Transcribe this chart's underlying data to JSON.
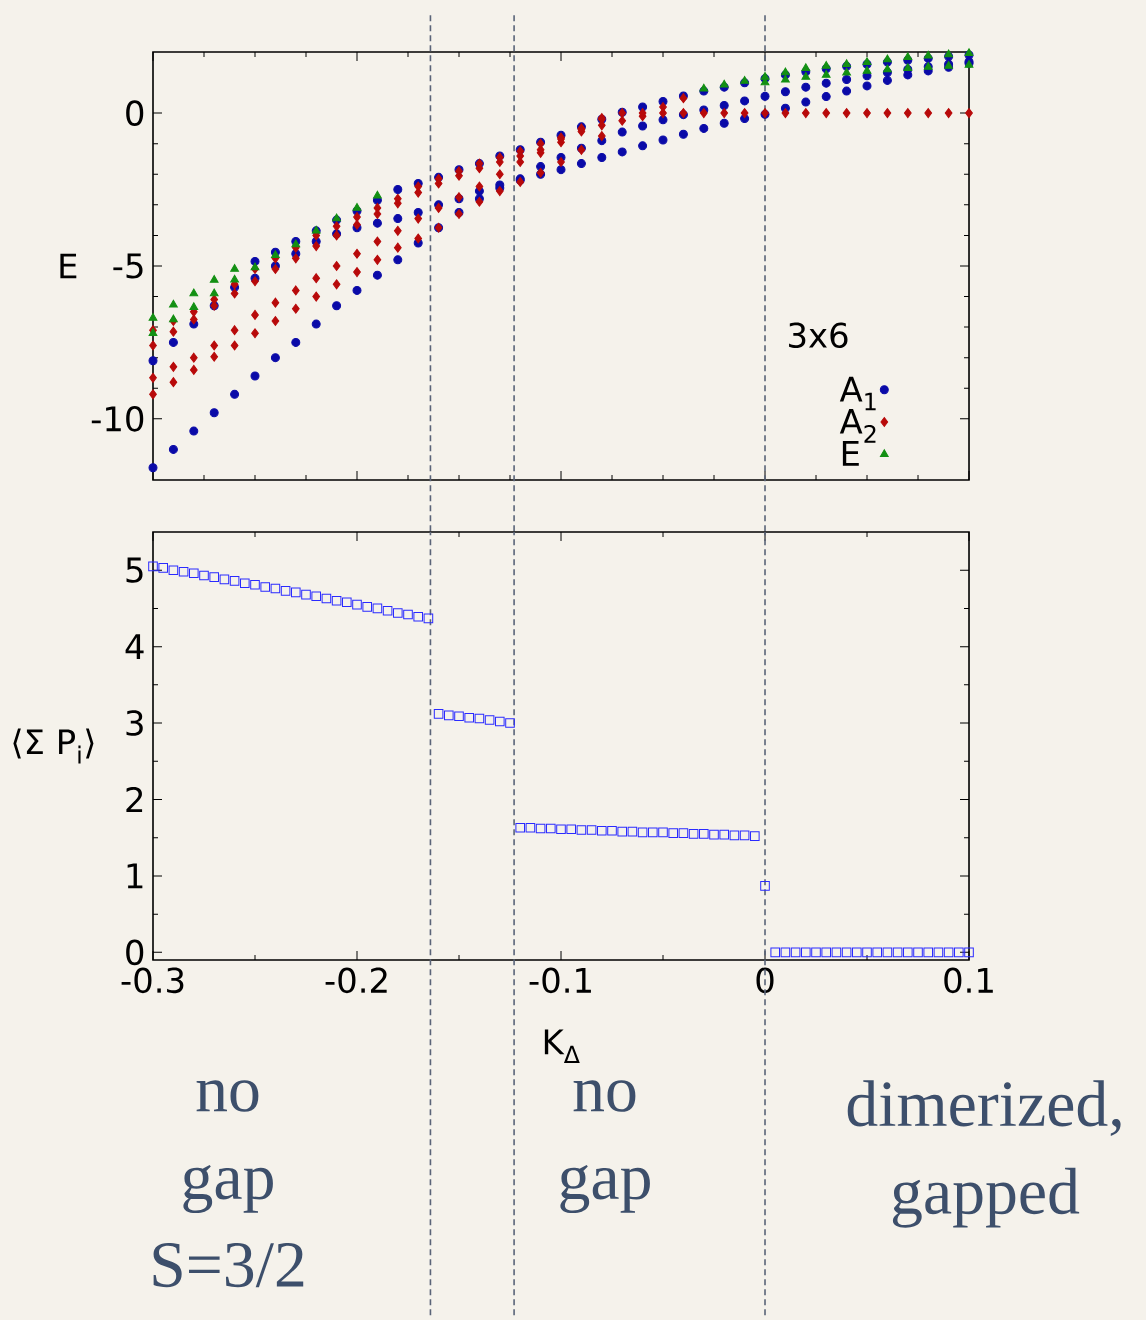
{
  "chart_data": [
    {
      "type": "scatter",
      "ylabel": "E",
      "xlim": [
        -0.3,
        0.1
      ],
      "ylim": [
        -12,
        2
      ],
      "xticks": [
        -0.3,
        -0.2,
        -0.1,
        0,
        0.1
      ],
      "yticks": [
        -10,
        -5,
        0
      ],
      "tick_labels": "y",
      "legend": "bottom right",
      "legend_title": "3x6",
      "series": [
        {
          "name": "A$_{1}$",
          "color": "#0a0aa8",
          "marker": "circle",
          "x": [
            -0.3,
            -0.29,
            -0.28,
            -0.27,
            -0.26,
            -0.25,
            -0.24,
            -0.23,
            -0.22,
            -0.21,
            -0.2,
            -0.19,
            -0.18,
            -0.17,
            -0.16,
            -0.15,
            -0.14,
            -0.13,
            -0.12,
            -0.11,
            -0.1,
            -0.09,
            -0.08,
            -0.07,
            -0.06,
            -0.05,
            -0.04,
            -0.03,
            -0.02,
            -0.01,
            0,
            0.01,
            0.02,
            0.03,
            0.04,
            0.05,
            0.06,
            0.07,
            0.08,
            0.09,
            0.1,
            -0.3,
            -0.29,
            -0.28,
            -0.27,
            -0.26,
            -0.25,
            -0.24,
            -0.23,
            -0.22,
            -0.21,
            -0.2,
            -0.19,
            -0.18,
            -0.17,
            -0.16,
            -0.15,
            -0.14,
            -0.13,
            -0.12,
            -0.11,
            -0.1,
            -0.09,
            -0.08,
            -0.07,
            -0.06,
            -0.05,
            -0.04,
            -0.03,
            -0.02,
            -0.01,
            0,
            0.01,
            0.02,
            0.03,
            0.04,
            0.05,
            0.06,
            0.07,
            0.08,
            0.09,
            0.1,
            -0.25,
            -0.24,
            -0.23,
            -0.22,
            -0.21,
            -0.2,
            -0.19,
            -0.18,
            -0.17,
            -0.16,
            -0.15,
            -0.14,
            -0.13,
            -0.12,
            -0.11,
            -0.1,
            -0.09,
            -0.08,
            -0.07,
            -0.06,
            -0.05,
            -0.04,
            -0.03,
            -0.02,
            -0.01,
            0,
            0.01,
            0.02,
            0.03,
            0.04,
            0.05,
            0.06,
            0.07,
            0.08,
            0.09,
            0.1
          ],
          "values": [
            -11.6,
            -11.0,
            -10.4,
            -9.8,
            -9.2,
            -8.6,
            -8.0,
            -7.5,
            -6.9,
            -6.3,
            -5.8,
            -5.3,
            -4.8,
            -4.25,
            -3.75,
            -3.25,
            -2.8,
            -2.45,
            -2.2,
            -2.0,
            -1.85,
            -1.65,
            -1.45,
            -1.27,
            -1.07,
            -0.88,
            -0.69,
            -0.5,
            -0.33,
            -0.18,
            -0.04,
            0.16,
            0.36,
            0.54,
            0.72,
            0.89,
            1.07,
            1.25,
            1.38,
            1.5,
            1.63,
            -8.1,
            -7.5,
            -6.9,
            -6.3,
            -5.7,
            -4.85,
            -4.55,
            -4.2,
            -3.85,
            -3.5,
            -3.2,
            -2.85,
            -2.5,
            -2.3,
            -2.1,
            -1.85,
            -1.65,
            -1.4,
            -1.2,
            -0.95,
            -0.72,
            -0.45,
            -0.2,
            0.03,
            0.2,
            0.38,
            0.56,
            0.72,
            0.85,
            0.99,
            1.13,
            1.25,
            1.35,
            1.45,
            1.53,
            1.6,
            1.67,
            1.73,
            1.79,
            1.85,
            1.9,
            -5.4,
            -5.0,
            -4.6,
            -4.2,
            -3.95,
            -3.75,
            -3.6,
            -3.45,
            -3.25,
            -3.0,
            -2.8,
            -2.55,
            -2.35,
            -2.15,
            -1.75,
            -1.45,
            -1.15,
            -0.9,
            -0.62,
            -0.42,
            -0.22,
            -0.05,
            0.1,
            0.25,
            0.4,
            0.55,
            0.7,
            0.85,
            0.98,
            1.1,
            1.22,
            1.33,
            1.43,
            1.52,
            1.6,
            1.68
          ]
        },
        {
          "name": "A$_{2}$",
          "color": "#b80a0a",
          "marker": "diamond",
          "x": [
            -0.3,
            -0.29,
            -0.28,
            -0.27,
            -0.26,
            -0.25,
            -0.24,
            -0.23,
            -0.22,
            -0.21,
            -0.2,
            -0.19,
            -0.18,
            -0.17,
            -0.16,
            -0.15,
            -0.14,
            -0.13,
            -0.12,
            -0.11,
            -0.1,
            -0.09,
            -0.08,
            -0.3,
            -0.29,
            -0.28,
            -0.27,
            -0.26,
            -0.25,
            -0.24,
            -0.23,
            -0.22,
            -0.21,
            -0.2,
            -0.19,
            -0.18,
            -0.17,
            -0.16,
            -0.15,
            -0.14,
            -0.13,
            -0.12,
            -0.11,
            -0.1,
            -0.09,
            -0.08,
            -0.3,
            -0.29,
            -0.28,
            -0.27,
            -0.26,
            -0.25,
            -0.24,
            -0.23,
            -0.22,
            -0.21,
            -0.2,
            -0.19,
            -0.18,
            -0.17,
            -0.16,
            -0.15,
            -0.14,
            -0.13,
            -0.12,
            -0.11,
            -0.1,
            -0.09,
            -0.08,
            -0.3,
            -0.29,
            -0.28,
            -0.27,
            -0.26,
            -0.25,
            -0.24,
            -0.23,
            -0.22,
            -0.21,
            -0.2,
            -0.19,
            -0.18,
            -0.17,
            -0.16,
            -0.15,
            -0.14,
            -0.13,
            -0.12,
            -0.11,
            -0.1,
            -0.09,
            -0.08,
            -0.07,
            -0.06,
            -0.05,
            -0.04,
            -0.07,
            -0.06,
            -0.05,
            -0.04,
            -0.03,
            -0.02,
            -0.01,
            0,
            0.01,
            0.02,
            0.03,
            0.04,
            0.05,
            0.06,
            0.07,
            0.08,
            0.09,
            0.1
          ],
          "values": [
            -9.2,
            -8.8,
            -8.4,
            -7.97,
            -7.6,
            -7.2,
            -6.8,
            -6.4,
            -6.0,
            -5.6,
            -5.2,
            -4.8,
            -4.4,
            -4.1,
            -3.75,
            -3.3,
            -2.9,
            -2.55,
            -2.25,
            -1.95,
            -1.6,
            -1.2,
            -0.75,
            -8.66,
            -8.3,
            -8.0,
            -7.6,
            -7.1,
            -6.6,
            -6.2,
            -5.8,
            -5.4,
            -5.0,
            -4.6,
            -4.2,
            -3.85,
            -3.45,
            -3.1,
            -2.75,
            -2.4,
            -2.0,
            -1.6,
            -1.3,
            -0.95,
            -0.53,
            -0.16,
            -7.6,
            -7.15,
            -6.75,
            -6.3,
            -5.9,
            -5.5,
            -5.1,
            -4.75,
            -4.35,
            -4.0,
            -3.65,
            -3.3,
            -2.95,
            -2.6,
            -2.3,
            -2.05,
            -1.8,
            -1.6,
            -1.4,
            -1.2,
            -0.85,
            -0.5,
            -0.2,
            -7.1,
            -6.8,
            -6.5,
            -6.1,
            -5.6,
            -5.1,
            -4.75,
            -4.4,
            -4.0,
            -3.7,
            -3.4,
            -3.1,
            -2.8,
            -2.4,
            -2.15,
            -1.9,
            -1.65,
            -1.45,
            -1.25,
            -1.0,
            -0.8,
            -0.6,
            -0.4,
            -0.25,
            -0.1,
            0.2,
            0.49,
            0,
            0,
            0,
            0,
            0,
            0,
            0,
            0,
            0,
            0,
            0,
            0,
            0,
            0,
            0,
            0,
            0,
            0
          ]
        },
        {
          "name": "E",
          "color": "#139013",
          "marker": "triangle",
          "x": [
            -0.3,
            -0.29,
            -0.28,
            -0.27,
            -0.26,
            -0.3,
            -0.29,
            -0.28,
            -0.27,
            -0.26,
            -0.25,
            -0.24,
            -0.23,
            -0.22,
            -0.21,
            -0.2,
            -0.19,
            -0.03,
            -0.02,
            -0.01,
            0,
            0.01,
            0.02,
            0.03,
            0.04,
            0.05,
            0.06,
            0.07,
            0.08,
            0.09,
            0.1,
            0,
            0.01,
            0.02,
            0.03,
            0.04,
            0.05,
            0.06,
            0.07,
            0.08,
            0.09,
            0.1
          ],
          "values": [
            -6.7,
            -6.27,
            -5.9,
            -5.46,
            -5.1,
            -7.2,
            -6.75,
            -6.35,
            -5.9,
            -5.45,
            -5.05,
            -4.65,
            -4.3,
            -3.85,
            -3.45,
            -3.1,
            -2.7,
            0.8,
            0.93,
            1.05,
            1.18,
            1.33,
            1.47,
            1.54,
            1.6,
            1.66,
            1.75,
            1.83,
            1.88,
            1.92,
            1.96,
            1.0,
            1.09,
            1.18,
            1.25,
            1.32,
            1.38,
            1.43,
            1.47,
            1.51,
            1.54,
            1.57
          ]
        }
      ],
      "ref_lines": [
        {
          "axis": "x",
          "value": -0.164,
          "color": "#5a6478",
          "line_style": "dashed"
        },
        {
          "axis": "x",
          "value": -0.123,
          "color": "#5a6478",
          "line_style": "dashed"
        },
        {
          "axis": "x",
          "value": 0,
          "color": "#5a6478",
          "line_style": "dashed"
        }
      ]
    },
    {
      "type": "scatter",
      "xlabel": "K$_{Δ}$",
      "ylabel": "⟨Σ P$_{i}$⟩",
      "xlim": [
        -0.3,
        0.1
      ],
      "ylim": [
        -0.1,
        5.5
      ],
      "xticks": [
        -0.3,
        -0.2,
        -0.1,
        0,
        0.1
      ],
      "yticks": [
        0,
        1,
        2,
        3,
        4,
        5
      ],
      "marker": "square",
      "series": [
        {
          "color": "#2a2aff",
          "x": [
            -0.3,
            -0.295,
            -0.29,
            -0.285,
            -0.28,
            -0.275,
            -0.27,
            -0.265,
            -0.26,
            -0.255,
            -0.25,
            -0.245,
            -0.24,
            -0.235,
            -0.23,
            -0.225,
            -0.22,
            -0.215,
            -0.21,
            -0.205,
            -0.2,
            -0.195,
            -0.19,
            -0.185,
            -0.18,
            -0.175,
            -0.17,
            -0.165,
            -0.16,
            -0.155,
            -0.15,
            -0.145,
            -0.14,
            -0.135,
            -0.13,
            -0.125,
            -0.12,
            -0.115,
            -0.11,
            -0.105,
            -0.1,
            -0.095,
            -0.09,
            -0.085,
            -0.08,
            -0.075,
            -0.07,
            -0.065,
            -0.06,
            -0.055,
            -0.05,
            -0.045,
            -0.04,
            -0.035,
            -0.03,
            -0.025,
            -0.02,
            -0.015,
            -0.01,
            -0.005,
            0,
            0.005,
            0.01,
            0.015,
            0.02,
            0.025,
            0.03,
            0.035,
            0.04,
            0.045,
            0.05,
            0.055,
            0.06,
            0.065,
            0.07,
            0.075,
            0.08,
            0.085,
            0.09,
            0.095,
            0.1
          ],
          "values": [
            5.05,
            5.03,
            5.0,
            4.98,
            4.96,
            4.93,
            4.91,
            4.88,
            4.86,
            4.83,
            4.81,
            4.78,
            4.76,
            4.73,
            4.71,
            4.68,
            4.66,
            4.63,
            4.6,
            4.58,
            4.55,
            4.52,
            4.5,
            4.47,
            4.44,
            4.42,
            4.39,
            4.37,
            3.12,
            3.1,
            3.09,
            3.07,
            3.06,
            3.04,
            3.02,
            3.0,
            1.63,
            1.63,
            1.62,
            1.62,
            1.61,
            1.61,
            1.6,
            1.6,
            1.59,
            1.59,
            1.58,
            1.58,
            1.57,
            1.57,
            1.57,
            1.56,
            1.56,
            1.55,
            1.55,
            1.54,
            1.54,
            1.53,
            1.53,
            1.52,
            0.87,
            0,
            0,
            0,
            0,
            0,
            0,
            0,
            0,
            0,
            0,
            0,
            0,
            0,
            0,
            0,
            0,
            0,
            0,
            0,
            0
          ]
        }
      ],
      "ref_lines": [
        {
          "axis": "x",
          "value": -0.164,
          "color": "#5a6478",
          "line_style": "dashed"
        },
        {
          "axis": "x",
          "value": -0.123,
          "color": "#5a6478",
          "line_style": "dashed"
        },
        {
          "axis": "x",
          "value": 0,
          "color": "#5a6478",
          "line_style": "dashed"
        }
      ],
      "annotations": [
        "no gap S=3/2",
        "no gap",
        "dimerized, gapped"
      ]
    }
  ]
}
